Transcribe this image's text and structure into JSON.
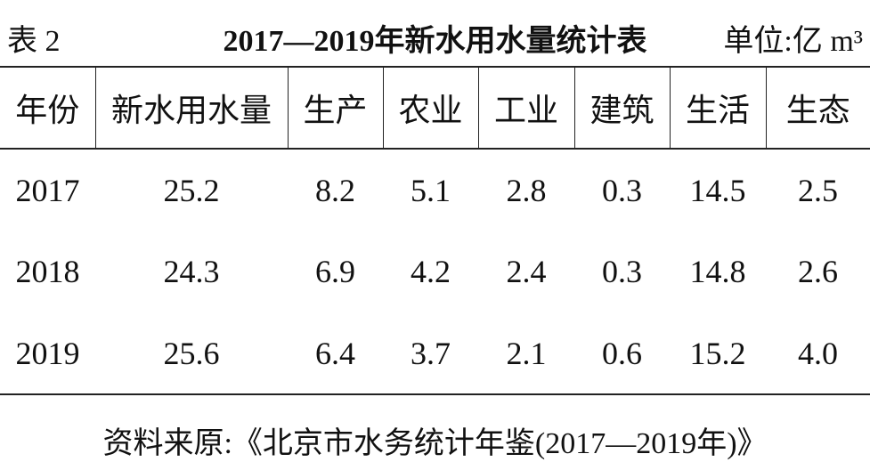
{
  "header": {
    "label": "表 2",
    "title": "2017—2019年新水用水量统计表",
    "unit": "单位:亿 m³"
  },
  "table": {
    "columns": [
      "年份",
      "新水用水量",
      "生产",
      "农业",
      "工业",
      "建筑",
      "生活",
      "生态"
    ],
    "rows": [
      [
        "2017",
        "25.2",
        "8.2",
        "5.1",
        "2.8",
        "0.3",
        "14.5",
        "2.5"
      ],
      [
        "2018",
        "24.3",
        "6.9",
        "4.2",
        "2.4",
        "0.3",
        "14.8",
        "2.6"
      ],
      [
        "2019",
        "25.6",
        "6.4",
        "3.7",
        "2.1",
        "0.6",
        "15.2",
        "4.0"
      ]
    ]
  },
  "footer": {
    "source": "资料来原:《北京市水务统计年鉴(2017—2019年)》"
  }
}
